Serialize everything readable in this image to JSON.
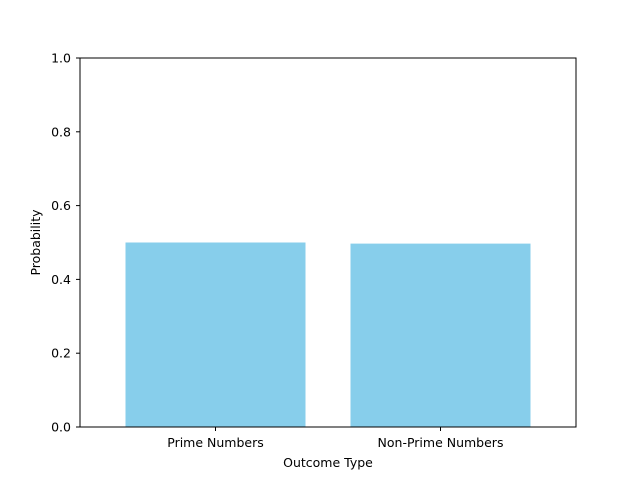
{
  "chart_data": {
    "type": "bar",
    "title": "",
    "xlabel": "Outcome Type",
    "ylabel": "Probability",
    "categories": [
      "Prime Numbers",
      "Non-Prime Numbers"
    ],
    "values": [
      0.5,
      0.497
    ],
    "ylim": [
      0,
      1
    ],
    "yticks": [
      0.0,
      0.2,
      0.4,
      0.6,
      0.8,
      1.0
    ],
    "ytick_labels": [
      "0.0",
      "0.2",
      "0.4",
      "0.6",
      "0.8",
      "1.0"
    ],
    "bar_color": "#87ceeb",
    "grid": false,
    "legend": "none"
  }
}
